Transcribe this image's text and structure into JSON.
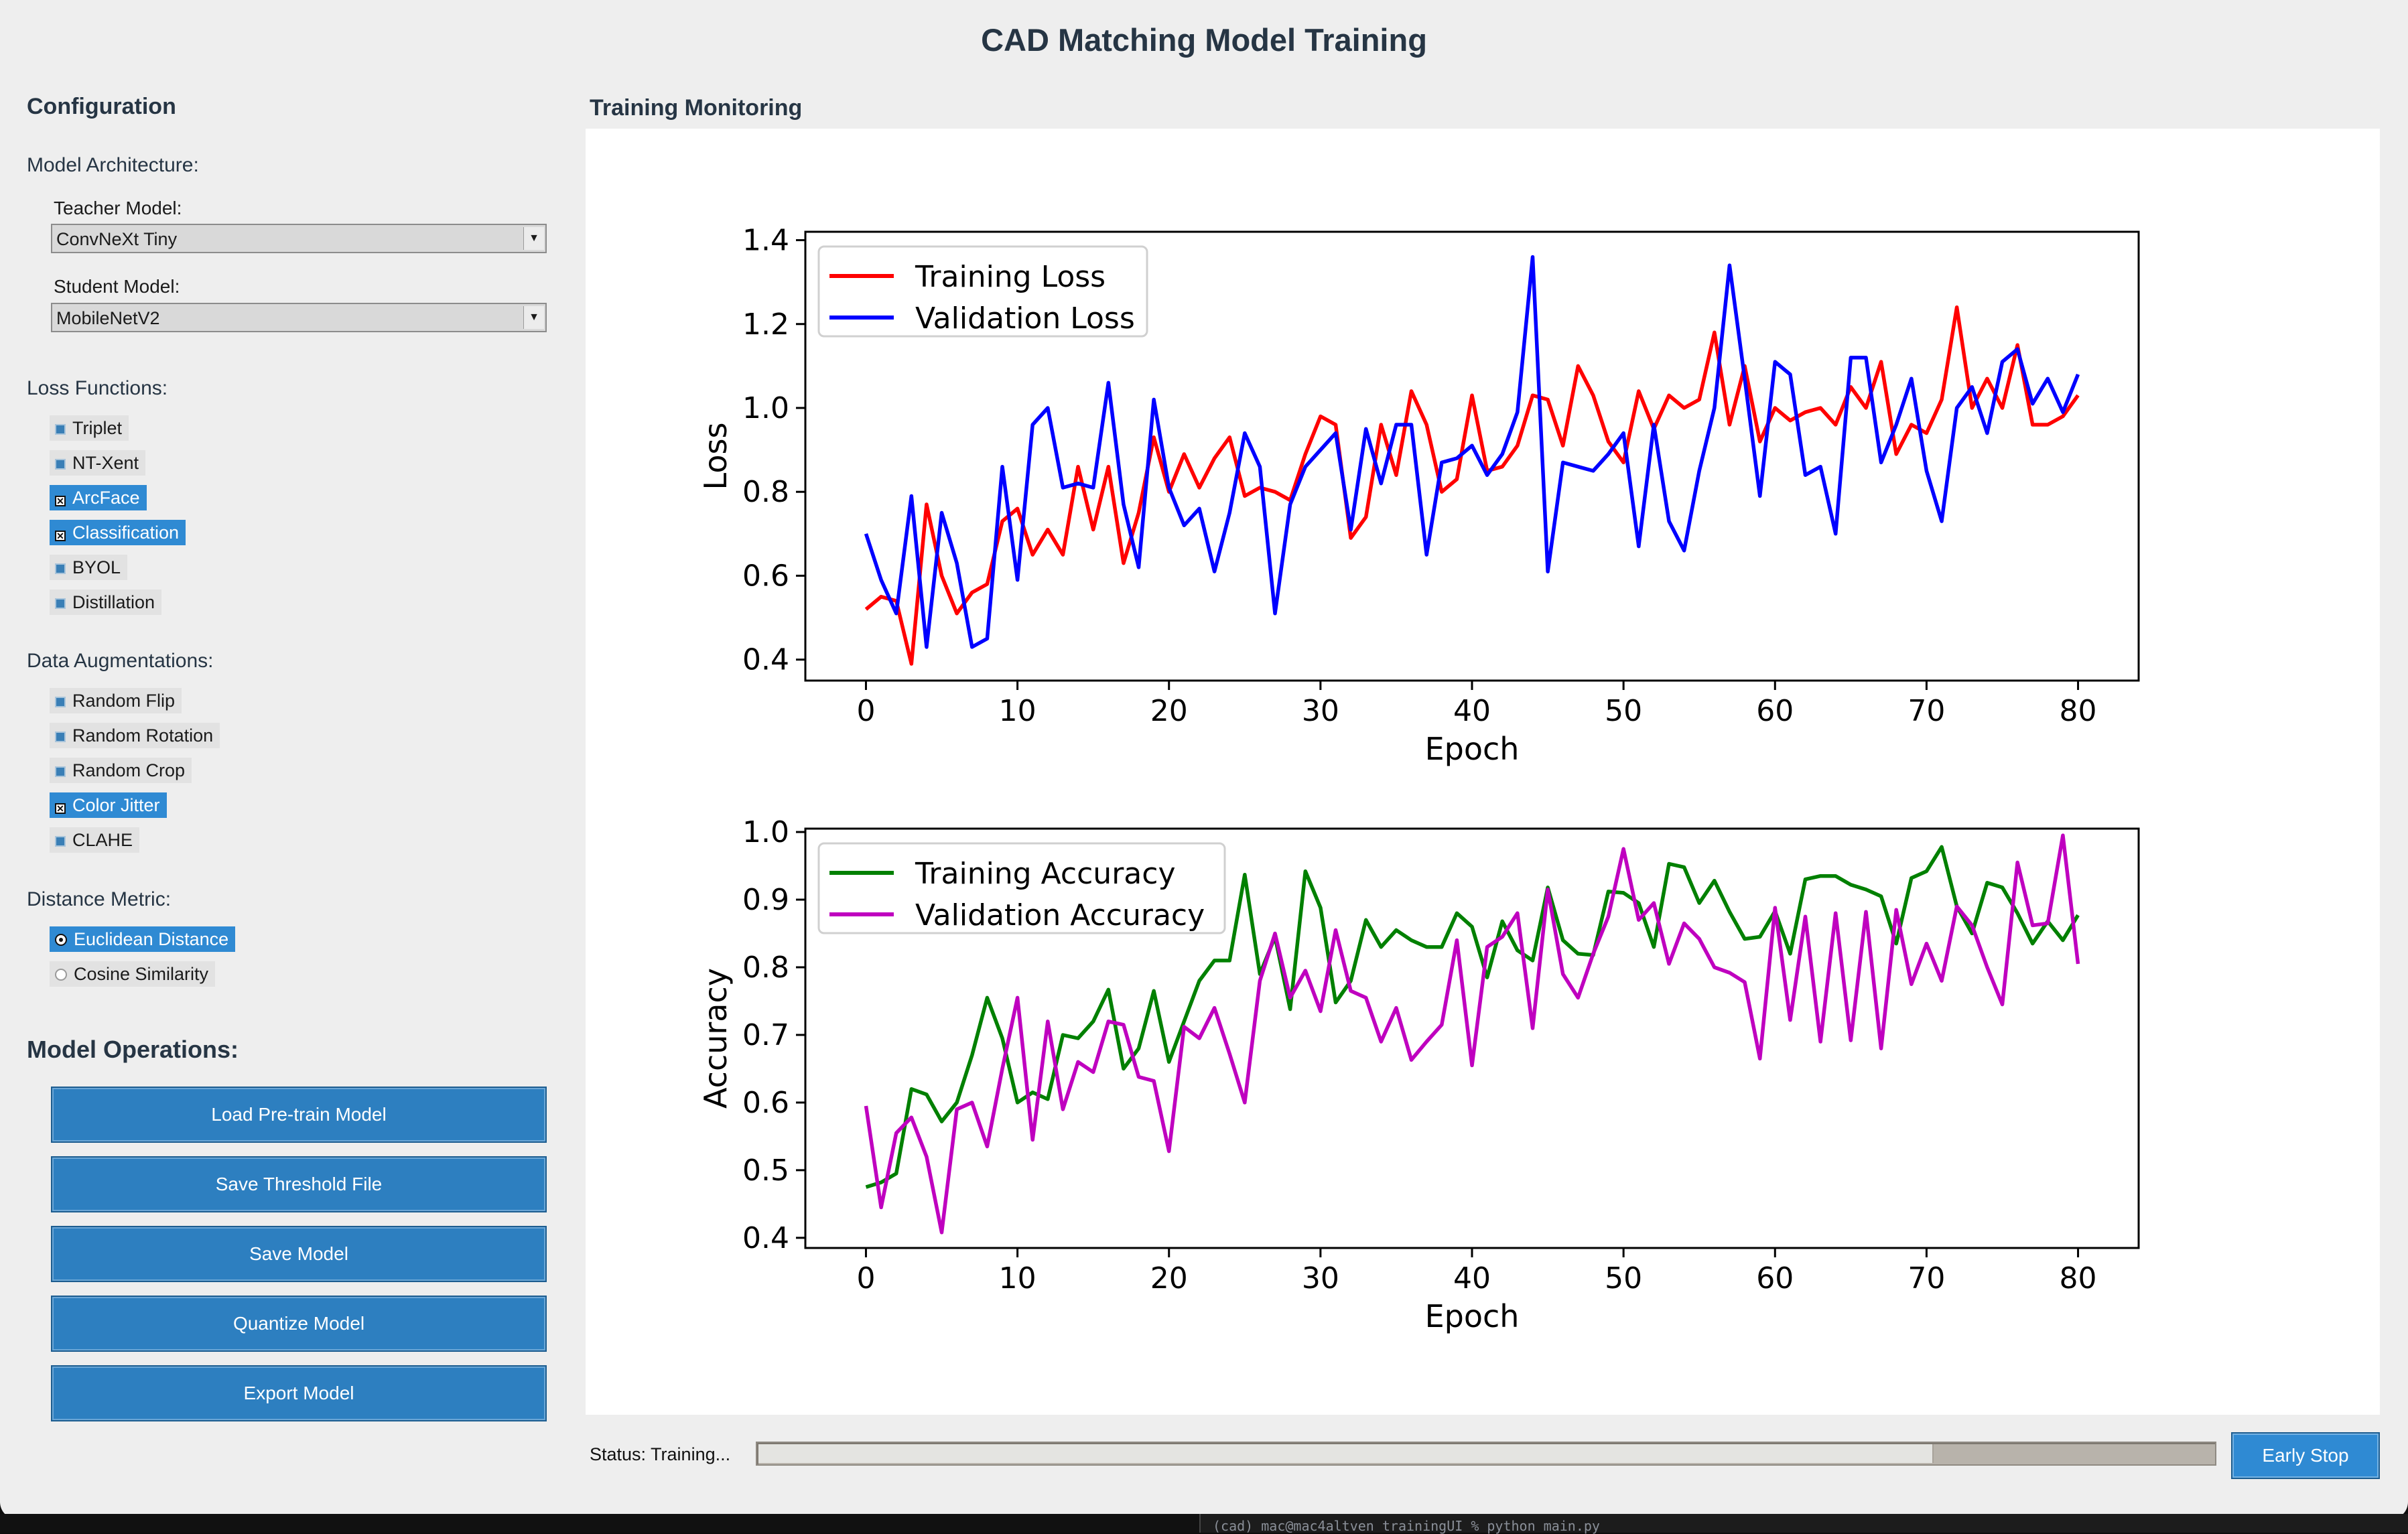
{
  "title": "CAD Matching Model Training",
  "config": {
    "heading": "Configuration",
    "model_architecture_label": "Model Architecture:",
    "teacher_label": "Teacher Model:",
    "teacher_value": "ConvNeXt Tiny",
    "student_label": "Student Model:",
    "student_value": "MobileNetV2",
    "loss_label": "Loss Functions:",
    "losses": [
      {
        "label": "Triplet",
        "checked": false
      },
      {
        "label": "NT-Xent",
        "checked": false
      },
      {
        "label": "ArcFace",
        "checked": true
      },
      {
        "label": "Classification",
        "checked": true
      },
      {
        "label": "BYOL",
        "checked": false
      },
      {
        "label": "Distillation",
        "checked": false
      }
    ],
    "aug_label": "Data Augmentations:",
    "augs": [
      {
        "label": "Random Flip",
        "checked": false
      },
      {
        "label": "Random Rotation",
        "checked": false
      },
      {
        "label": "Random Crop",
        "checked": false
      },
      {
        "label": "Color Jitter",
        "checked": true
      },
      {
        "label": "CLAHE",
        "checked": false
      }
    ],
    "metric_label": "Distance Metric:",
    "metrics": [
      {
        "label": "Euclidean Distance",
        "selected": true
      },
      {
        "label": "Cosine Similarity",
        "selected": false
      }
    ]
  },
  "operations": {
    "heading": "Model Operations:",
    "buttons": [
      "Load Pre-train Model",
      "Save Threshold File",
      "Save Model",
      "Quantize Model",
      "Export Model"
    ]
  },
  "monitor": {
    "heading": "Training Monitoring"
  },
  "status": {
    "label": "Status: Training...",
    "progress": 0.805,
    "early_stop": "Early Stop"
  },
  "terminal_text": "(cad) mac@mac4altven trainingUI % python main.py",
  "colors": {
    "training_loss": "#ff0000",
    "validation_loss": "#0000ff",
    "training_accuracy": "#008000",
    "validation_accuracy": "#bf00bf",
    "button": "#2d7fc0",
    "accent": "#2f8ad3"
  },
  "chart_data": [
    {
      "type": "line",
      "xlabel": "Epoch",
      "ylabel": "Loss",
      "xlim": [
        -4,
        84
      ],
      "ylim": [
        0.35,
        1.42
      ],
      "xticks": [
        0,
        10,
        20,
        30,
        40,
        50,
        60,
        70,
        80
      ],
      "yticks": [
        0.4,
        0.6,
        0.8,
        1.0,
        1.2,
        1.4
      ],
      "ytick_labels": [
        "0.4",
        "0.6",
        "0.8",
        "1.0",
        "1.2",
        "1.4"
      ],
      "legend": "top-left",
      "x": [
        0,
        1,
        2,
        3,
        4,
        5,
        6,
        7,
        8,
        9,
        10,
        11,
        12,
        13,
        14,
        15,
        16,
        17,
        18,
        19,
        20,
        21,
        22,
        23,
        24,
        25,
        26,
        27,
        28,
        29,
        30,
        31,
        32,
        33,
        34,
        35,
        36,
        37,
        38,
        39,
        40,
        41,
        42,
        43,
        44,
        45,
        46,
        47,
        48,
        49,
        50,
        51,
        52,
        53,
        54,
        55,
        56,
        57,
        58,
        59,
        60,
        61,
        62,
        63,
        64,
        65,
        66,
        67,
        68,
        69,
        70,
        71,
        72,
        73,
        74,
        75,
        76,
        77,
        78,
        79,
        80
      ],
      "series": [
        {
          "name": "Training Loss",
          "color": "#ff0000",
          "values": [
            0.52,
            0.55,
            0.54,
            0.39,
            0.77,
            0.6,
            0.51,
            0.56,
            0.58,
            0.73,
            0.76,
            0.65,
            0.71,
            0.65,
            0.86,
            0.71,
            0.86,
            0.63,
            0.75,
            0.93,
            0.8,
            0.89,
            0.81,
            0.88,
            0.93,
            0.79,
            0.81,
            0.8,
            0.78,
            0.89,
            0.98,
            0.96,
            0.69,
            0.74,
            0.96,
            0.84,
            1.04,
            0.96,
            0.8,
            0.83,
            1.03,
            0.85,
            0.86,
            0.91,
            1.03,
            1.02,
            0.91,
            1.1,
            1.03,
            0.92,
            0.87,
            1.04,
            0.95,
            1.03,
            1.0,
            1.02,
            1.18,
            0.96,
            1.1,
            0.92,
            1.0,
            0.97,
            0.99,
            1.0,
            0.96,
            1.05,
            1.0,
            1.11,
            0.89,
            0.96,
            0.94,
            1.02,
            1.24,
            1.0,
            1.07,
            1.0,
            1.15,
            0.96,
            0.96,
            0.98,
            1.03
          ]
        },
        {
          "name": "Validation Loss",
          "color": "#0000ff",
          "values": [
            0.7,
            0.59,
            0.51,
            0.79,
            0.43,
            0.75,
            0.63,
            0.43,
            0.45,
            0.86,
            0.59,
            0.96,
            1.0,
            0.81,
            0.82,
            0.81,
            1.06,
            0.77,
            0.62,
            1.02,
            0.81,
            0.72,
            0.76,
            0.61,
            0.75,
            0.94,
            0.86,
            0.51,
            0.77,
            0.86,
            0.9,
            0.94,
            0.71,
            0.95,
            0.82,
            0.96,
            0.96,
            0.65,
            0.87,
            0.88,
            0.91,
            0.84,
            0.89,
            0.99,
            1.36,
            0.61,
            0.87,
            0.86,
            0.85,
            0.89,
            0.94,
            0.67,
            0.96,
            0.73,
            0.66,
            0.85,
            1.0,
            1.34,
            1.07,
            0.79,
            1.11,
            1.08,
            0.84,
            0.86,
            0.7,
            1.12,
            1.12,
            0.87,
            0.96,
            1.07,
            0.85,
            0.73,
            1.0,
            1.05,
            0.94,
            1.11,
            1.14,
            1.01,
            1.07,
            0.99,
            1.08
          ]
        }
      ]
    },
    {
      "type": "line",
      "xlabel": "Epoch",
      "ylabel": "Accuracy",
      "xlim": [
        -4,
        84
      ],
      "ylim": [
        0.385,
        1.005
      ],
      "xticks": [
        0,
        10,
        20,
        30,
        40,
        50,
        60,
        70,
        80
      ],
      "yticks": [
        0.4,
        0.5,
        0.6,
        0.7,
        0.8,
        0.9,
        1.0
      ],
      "ytick_labels": [
        "0.4",
        "0.5",
        "0.6",
        "0.7",
        "0.8",
        "0.9",
        "1.0"
      ],
      "legend": "top-left",
      "x": [
        0,
        1,
        2,
        3,
        4,
        5,
        6,
        7,
        8,
        9,
        10,
        11,
        12,
        13,
        14,
        15,
        16,
        17,
        18,
        19,
        20,
        21,
        22,
        23,
        24,
        25,
        26,
        27,
        28,
        29,
        30,
        31,
        32,
        33,
        34,
        35,
        36,
        37,
        38,
        39,
        40,
        41,
        42,
        43,
        44,
        45,
        46,
        47,
        48,
        49,
        50,
        51,
        52,
        53,
        54,
        55,
        56,
        57,
        58,
        59,
        60,
        61,
        62,
        63,
        64,
        65,
        66,
        67,
        68,
        69,
        70,
        71,
        72,
        73,
        74,
        75,
        76,
        77,
        78,
        79,
        80
      ],
      "series": [
        {
          "name": "Training Accuracy",
          "color": "#008000",
          "values": [
            0.475,
            0.482,
            0.495,
            0.62,
            0.612,
            0.572,
            0.6,
            0.67,
            0.755,
            0.695,
            0.6,
            0.615,
            0.605,
            0.7,
            0.695,
            0.72,
            0.767,
            0.65,
            0.68,
            0.765,
            0.66,
            0.72,
            0.78,
            0.81,
            0.81,
            0.937,
            0.79,
            0.845,
            0.738,
            0.942,
            0.888,
            0.748,
            0.78,
            0.87,
            0.83,
            0.855,
            0.84,
            0.83,
            0.83,
            0.88,
            0.86,
            0.785,
            0.868,
            0.825,
            0.81,
            0.918,
            0.84,
            0.82,
            0.818,
            0.912,
            0.91,
            0.895,
            0.83,
            0.953,
            0.948,
            0.895,
            0.928,
            0.882,
            0.842,
            0.845,
            0.883,
            0.82,
            0.93,
            0.935,
            0.935,
            0.922,
            0.915,
            0.905,
            0.835,
            0.932,
            0.942,
            0.978,
            0.89,
            0.85,
            0.925,
            0.918,
            0.88,
            0.835,
            0.868,
            0.84,
            0.877
          ]
        },
        {
          "name": "Validation Accuracy",
          "color": "#bf00bf",
          "values": [
            0.595,
            0.445,
            0.555,
            0.578,
            0.52,
            0.408,
            0.59,
            0.6,
            0.535,
            0.65,
            0.755,
            0.545,
            0.72,
            0.59,
            0.66,
            0.645,
            0.72,
            0.715,
            0.638,
            0.632,
            0.528,
            0.712,
            0.695,
            0.74,
            0.672,
            0.6,
            0.78,
            0.85,
            0.755,
            0.795,
            0.735,
            0.855,
            0.765,
            0.755,
            0.69,
            0.74,
            0.663,
            0.69,
            0.715,
            0.84,
            0.655,
            0.83,
            0.845,
            0.88,
            0.71,
            0.915,
            0.79,
            0.755,
            0.82,
            0.875,
            0.975,
            0.87,
            0.895,
            0.805,
            0.865,
            0.842,
            0.8,
            0.792,
            0.778,
            0.665,
            0.888,
            0.722,
            0.875,
            0.69,
            0.88,
            0.692,
            0.882,
            0.68,
            0.885,
            0.775,
            0.835,
            0.78,
            0.89,
            0.862,
            0.8,
            0.745,
            0.955,
            0.862,
            0.865,
            0.995,
            0.805
          ]
        }
      ]
    }
  ]
}
